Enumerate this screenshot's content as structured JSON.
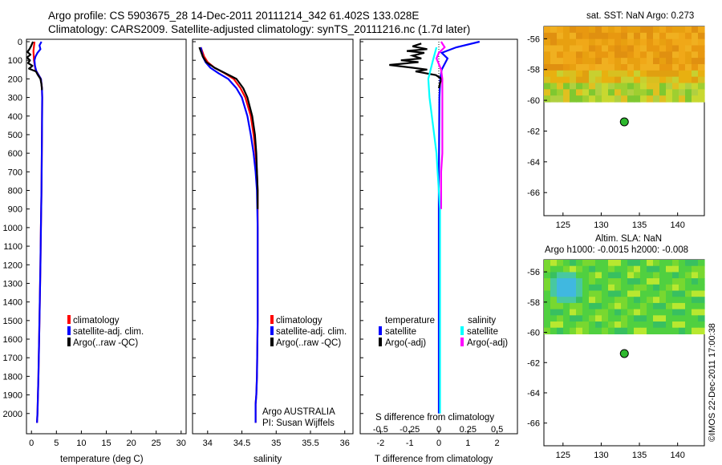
{
  "header": {
    "line1": "Argo profile: CS 5903675_28 14-Dec-2011 20111214_342 61.402S 133.028E",
    "line2": "Climatology: CARS2009. Satellite-adjusted climatology: synTS_20111216.nc (1.7d later)"
  },
  "colors": {
    "climatology": "#ff0000",
    "satellite": "#0000ff",
    "argo": "#000000",
    "sat_diff": "#00ffff",
    "argo_diff": "#ff00ff",
    "float": "#2db82d"
  },
  "chart_data": [
    {
      "type": "line",
      "id": "temperature",
      "xlabel": "temperature (deg C)",
      "ylabel": "",
      "xlim": [
        -1,
        31
      ],
      "ylim": [
        2070,
        0
      ],
      "xticks": [
        0,
        5,
        10,
        15,
        20,
        25,
        30
      ],
      "yticks": [
        0,
        100,
        200,
        300,
        400,
        500,
        600,
        700,
        800,
        900,
        1000,
        1100,
        1200,
        1300,
        1400,
        1500,
        1600,
        1700,
        1800,
        1900,
        2000
      ],
      "legend": [
        "climatology",
        "satellite-adj. clim.",
        "Argo(..raw -QC)"
      ],
      "series": [
        {
          "name": "climatology",
          "depth": [
            0,
            50,
            100,
            150,
            200,
            250,
            300,
            500,
            800,
            1000,
            1200,
            1500,
            1800,
            2000,
            2050
          ],
          "values": [
            0.6,
            0.4,
            0.5,
            0.8,
            1.9,
            2.1,
            2.15,
            2.1,
            2.0,
            1.9,
            1.8,
            1.6,
            1.4,
            1.2,
            1.1
          ]
        },
        {
          "name": "satellite-adj. clim.",
          "depth": [
            0,
            20,
            40,
            60,
            80,
            100,
            130,
            160,
            200,
            250,
            300,
            500,
            800,
            1000,
            1200,
            1500,
            1800,
            2000,
            2050
          ],
          "values": [
            2.0,
            1.6,
            1.8,
            1.2,
            0.8,
            0.6,
            0.7,
            1.0,
            1.9,
            2.1,
            2.15,
            2.1,
            2.0,
            1.9,
            1.8,
            1.6,
            1.4,
            1.2,
            1.1
          ]
        },
        {
          "name": "Argo(..raw -QC)",
          "depth": [
            0,
            25,
            40,
            55,
            70,
            85,
            100,
            115,
            130,
            145,
            160,
            180,
            200,
            230,
            260
          ],
          "values": [
            0.3,
            -0.1,
            -0.4,
            -0.8,
            -0.2,
            -0.9,
            -0.3,
            -0.7,
            0.2,
            -0.5,
            0.9,
            1.3,
            1.8,
            2.0,
            2.1
          ]
        }
      ]
    },
    {
      "type": "line",
      "id": "salinity",
      "xlabel": "salinity",
      "ylabel": "",
      "xlim": [
        33.78,
        36.12
      ],
      "ylim": [
        2070,
        0
      ],
      "xticks": [
        34,
        34.5,
        35,
        35.5,
        36
      ],
      "legend": [
        "climatology",
        "satellite-adj. clim.",
        "Argo(..raw -QC)"
      ],
      "annotation": [
        "Argo AUSTRALIA",
        "PI: Susan Wijffels"
      ],
      "series": [
        {
          "name": "climatology",
          "depth": [
            30,
            80,
            110,
            140,
            170,
            200,
            250,
            300,
            400,
            500,
            600,
            700,
            800,
            1000,
            1200,
            1500,
            1800,
            1900,
            1950,
            2050
          ],
          "values": [
            33.9,
            33.95,
            34.0,
            34.1,
            34.25,
            34.38,
            34.48,
            34.55,
            34.63,
            34.67,
            34.7,
            34.72,
            34.73,
            34.73,
            34.73,
            34.73,
            34.72,
            34.71,
            34.7,
            34.7
          ]
        },
        {
          "name": "satellite-adj. clim.",
          "depth": [
            30,
            80,
            110,
            140,
            170,
            200,
            250,
            300,
            400,
            500,
            600,
            700,
            800,
            1000,
            1200,
            1500,
            1800,
            1900,
            1950,
            2050
          ],
          "values": [
            33.9,
            33.93,
            33.97,
            34.04,
            34.16,
            34.3,
            34.42,
            34.5,
            34.58,
            34.63,
            34.67,
            34.7,
            34.72,
            34.73,
            34.73,
            34.73,
            34.72,
            34.71,
            34.7,
            34.7
          ]
        },
        {
          "name": "Argo(..raw -QC)",
          "depth": [
            30,
            80,
            110,
            140,
            170,
            200,
            250,
            300,
            400,
            500,
            600,
            700,
            800,
            900
          ],
          "values": [
            33.88,
            33.93,
            33.98,
            34.1,
            34.26,
            34.42,
            34.52,
            34.58,
            34.65,
            34.69,
            34.71,
            34.72,
            34.73,
            34.73
          ]
        }
      ]
    },
    {
      "type": "line",
      "id": "differences",
      "xlabel": "T difference from climatology",
      "xlabel_top": "S difference from climatology",
      "xlim": [
        -2.7,
        2.7
      ],
      "ylim": [
        2070,
        0
      ],
      "xticks": [
        -2,
        -1,
        0,
        1,
        2
      ],
      "sticks": [
        "-0.5",
        "-0.25",
        "0",
        "0.25",
        "0.5"
      ],
      "legend_titles": [
        "temperature",
        "salinity"
      ],
      "legend": [
        "satellite",
        "Argo(-adj)",
        "satellite",
        "Argo(-adj)"
      ],
      "series": [
        {
          "name": "T satellite",
          "depth": [
            0,
            30,
            60,
            90,
            120,
            150,
            200,
            300,
            500,
            800,
            1200,
            1500,
            1800,
            2000
          ],
          "values": [
            1.4,
            0.6,
            0.1,
            0.3,
            0.2,
            0.1,
            0.05,
            0.02,
            0.01,
            0.0,
            0.0,
            0.0,
            0.0,
            0.0
          ]
        },
        {
          "name": "T Argo(-adj)",
          "depth": [
            10,
            25,
            40,
            50,
            60,
            75,
            90,
            100,
            110,
            125,
            140,
            150,
            160,
            180,
            200,
            220,
            250
          ],
          "values": [
            -0.6,
            -0.9,
            -0.4,
            -1.1,
            -0.5,
            -0.9,
            -0.6,
            -1.3,
            -0.7,
            -1.7,
            -0.9,
            -0.4,
            -0.8,
            -0.1,
            0.1,
            0.05,
            0.0
          ]
        },
        {
          "name": "S satellite",
          "depth": [
            30,
            100,
            200,
            300,
            400,
            500,
            600,
            700,
            800,
            900,
            1000,
            1500,
            2000
          ],
          "values": [
            -0.02,
            -0.05,
            -0.09,
            -0.08,
            -0.06,
            -0.04,
            -0.02,
            -0.01,
            0.0,
            0.01,
            0.01,
            0.01,
            0.01
          ]
        },
        {
          "name": "S Argo(-adj)",
          "depth": [
            0,
            30,
            60,
            90,
            120,
            150,
            200,
            250,
            300,
            400,
            500,
            600,
            700,
            800,
            900
          ],
          "values": [
            0.02,
            0.05,
            0.0,
            -0.02,
            0.0,
            0.02,
            0.03,
            0.03,
            0.03,
            0.03,
            0.03,
            0.03,
            0.02,
            0.02,
            0.02
          ]
        }
      ]
    },
    {
      "type": "heatmap",
      "id": "sst_map",
      "title": "sat. SST: NaN Argo: 0.273",
      "xlim": [
        122.5,
        143.5
      ],
      "ylim": [
        -67.5,
        -55.2
      ],
      "xticks": [
        125,
        130,
        135,
        140
      ],
      "yticks": [
        -56,
        -58,
        -60,
        -62,
        -64,
        -66
      ],
      "data_lat_min": -60.1,
      "argo_position": [
        133.028,
        -61.402
      ]
    },
    {
      "type": "heatmap",
      "id": "sla_map",
      "title": "Altim. SLA: NaN",
      "subtitle": "Argo h1000: -0.0015 h2000: -0.008",
      "xlim": [
        122.5,
        143.5
      ],
      "ylim": [
        -67.5,
        -55.2
      ],
      "xticks": [
        125,
        130,
        135,
        140
      ],
      "yticks": [
        -56,
        -58,
        -60,
        -62,
        -64,
        -66
      ],
      "data_lat_min": -60.1,
      "argo_position": [
        133.028,
        -61.402
      ]
    }
  ],
  "credit": "©IMOS 22-Dec-2011 17:00:38"
}
